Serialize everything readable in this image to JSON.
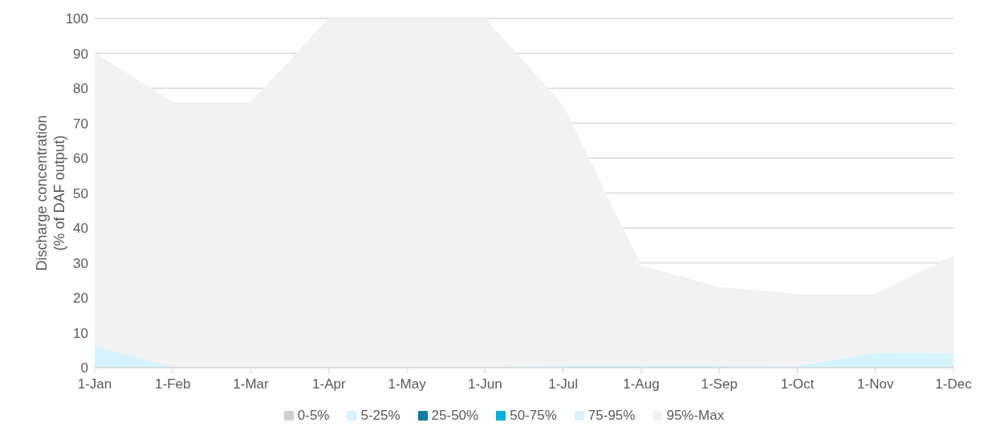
{
  "chart_data": {
    "type": "area",
    "ylabel": "Discharge concentration\n(% of DAF output)",
    "categories": [
      "1-Jan",
      "1-Feb",
      "1-Mar",
      "1-Apr",
      "1-May",
      "1-Jun",
      "1-Jul",
      "1-Aug",
      "1-Sep",
      "1-Oct",
      "1-Nov",
      "1-Dec"
    ],
    "series": [
      {
        "name": "0-5%",
        "color": "#d0d0d0",
        "values": [
          null,
          null,
          null,
          null,
          null,
          null,
          null,
          null,
          null,
          null,
          null,
          null
        ]
      },
      {
        "name": "5-25%",
        "color": "#d6f3fb",
        "values": [
          null,
          null,
          null,
          null,
          null,
          null,
          null,
          null,
          null,
          null,
          null,
          null
        ]
      },
      {
        "name": "25-50%",
        "color": "#0a7fa0",
        "values": [
          null,
          null,
          null,
          null,
          null,
          null,
          null,
          null,
          null,
          null,
          null,
          null
        ]
      },
      {
        "name": "50-75%",
        "color": "#00b0e0",
        "values": [
          null,
          null,
          null,
          null,
          null,
          null,
          null,
          null,
          null,
          null,
          null,
          null
        ]
      },
      {
        "name": "75-95%",
        "color": "#d6f3fb",
        "values": [
          6,
          0,
          0,
          0,
          0,
          0,
          0.5,
          0.5,
          0.5,
          0.3,
          4,
          4
        ]
      },
      {
        "name": "95%-Max",
        "color": "#f2f2f2",
        "values": [
          90,
          76,
          76,
          100,
          100,
          100,
          75,
          29,
          23,
          21,
          21,
          32
        ]
      }
    ],
    "ylim": [
      0,
      100
    ],
    "yticks": [
      0,
      10,
      20,
      30,
      40,
      50,
      60,
      70,
      80,
      90,
      100
    ],
    "grid": "y",
    "legend": "bottom"
  }
}
